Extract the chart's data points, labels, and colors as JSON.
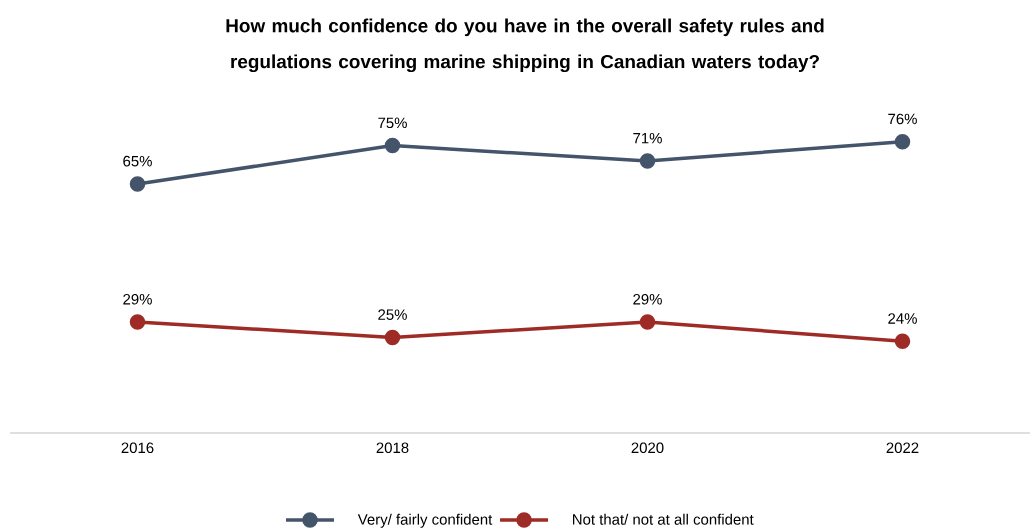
{
  "chart_data": {
    "type": "line",
    "title": "How much confidence do you have in the overall safety rules and regulations covering marine shipping in Canadian waters today?",
    "categories": [
      "2016",
      "2018",
      "2020",
      "2022"
    ],
    "series": [
      {
        "name": "Very/ fairly confident",
        "color": "#44546a",
        "values": [
          65,
          75,
          71,
          76
        ],
        "value_labels": [
          "65%",
          "75%",
          "71%",
          "76%"
        ]
      },
      {
        "name": "Not that/ not at all confident",
        "color": "#9e2b25",
        "values": [
          29,
          25,
          29,
          24
        ],
        "value_labels": [
          "29%",
          "25%",
          "29%",
          "24%"
        ]
      }
    ],
    "tick_labels": "x",
    "legend": "bottom",
    "marker": "circle",
    "line_style": "solid"
  }
}
